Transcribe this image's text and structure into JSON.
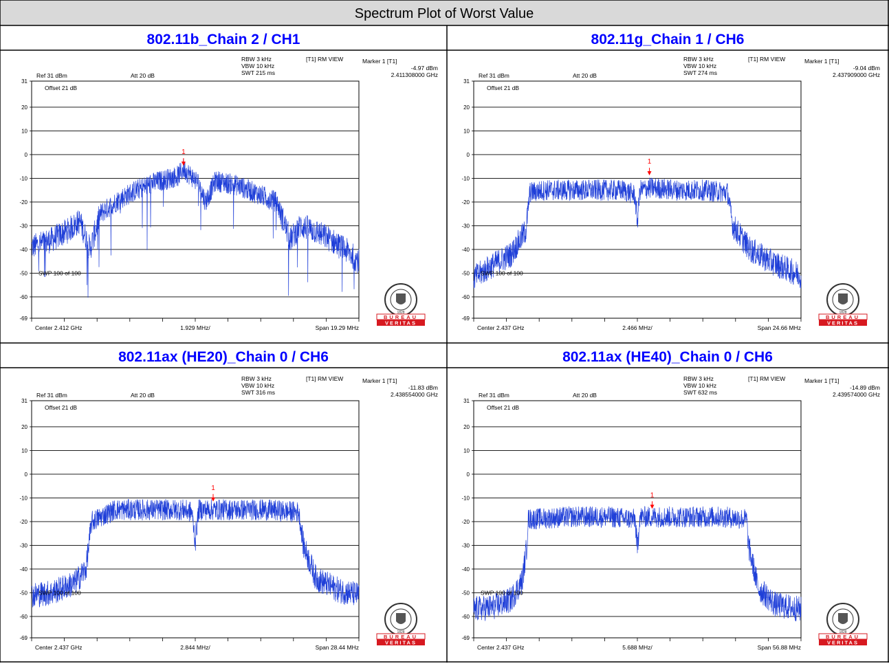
{
  "page": {
    "title": "Spectrum Plot of Worst Value"
  },
  "colors": {
    "trace": "#1f3fd8",
    "marker": "#ff0000",
    "heading": "#0000ff",
    "title_bg": "#d9d9d9",
    "bv_red": "#d71920",
    "grid": "#000000"
  },
  "logo": {
    "word1": "BUREAU",
    "word2": "VERITAS",
    "seal_year": "1828"
  },
  "panels": [
    {
      "heading": "802.11b_Chain 2 / CH1",
      "rbw": "RBW 3 kHz",
      "vbw": "VBW 10 kHz",
      "swt": "SWT 215 ms",
      "mode": "[T1] RM VIEW",
      "marker_label": "Marker 1 [T1]",
      "marker_level": "-4.97 dBm",
      "marker_freq": "2.411308000 GHz",
      "ref": "Ref 31 dBm",
      "att": "Att  20 dB",
      "offset": "Offset 21 dB",
      "swp": "SWP 100 of 100",
      "center": "Center 2.412 GHz",
      "perdiv": "1.929 MHz/",
      "span": "Span 19.29 MHz",
      "marker_num": "1"
    },
    {
      "heading": "802.11g_Chain 1 / CH6",
      "rbw": "RBW 3 kHz",
      "vbw": "VBW 10 kHz",
      "swt": "SWT 274 ms",
      "mode": "[T1] RM VIEW",
      "marker_label": "Marker 1 [T1]",
      "marker_level": "-9.04 dBm",
      "marker_freq": "2.437909000 GHz",
      "ref": "Ref 31 dBm",
      "att": "Att  20 dB",
      "offset": "Offset 21 dB",
      "swp": "SWP 100 of 100",
      "center": "Center 2.437 GHz",
      "perdiv": "2.466 MHz/",
      "span": "Span 24.66 MHz",
      "marker_num": "1"
    },
    {
      "heading": "802.11ax (HE20)_Chain 0 / CH6",
      "rbw": "RBW 3 kHz",
      "vbw": "VBW 10 kHz",
      "swt": "SWT 316 ms",
      "mode": "[T1] RM VIEW",
      "marker_label": "Marker 1 [T1]",
      "marker_level": "-11.83 dBm",
      "marker_freq": "2.438554000 GHz",
      "ref": "Ref 31 dBm",
      "att": "Att  20 dB",
      "offset": "Offset 21 dB",
      "swp": "SWP 100 of 100",
      "center": "Center 2.437 GHz",
      "perdiv": "2.844 MHz/",
      "span": "Span 28.44 MHz",
      "marker_num": "1"
    },
    {
      "heading": "802.11ax (HE40)_Chain 0 / CH6",
      "rbw": "RBW 3 kHz",
      "vbw": "VBW 10 kHz",
      "swt": "SWT 632 ms",
      "mode": "[T1] RM VIEW",
      "marker_label": "Marker 1 [T1]",
      "marker_level": "-14.89 dBm",
      "marker_freq": "2.439574000 GHz",
      "ref": "Ref 31 dBm",
      "att": "Att  20 dB",
      "offset": "Offset 21 dB",
      "swp": "SWP 100 of 100",
      "center": "Center 2.437 GHz",
      "perdiv": "5.688 MHz/",
      "span": "Span 56.88 MHz",
      "marker_num": "1"
    }
  ],
  "chart_data": [
    {
      "type": "line",
      "title": "802.11b_Chain 2 / CH1",
      "ylabel": "dBm",
      "ylim": [
        -69,
        31
      ],
      "yticks": [
        "31",
        "20",
        "10",
        "0",
        "-10",
        "-20",
        "-30",
        "-40",
        "-50",
        "-60",
        "-69"
      ],
      "xlim_mhz": [
        2402.355,
        2421.645
      ],
      "grid": true,
      "series": [
        {
          "x_mhz": [
            2402.355,
            2403.5,
            2404.5,
            2405.2,
            2405.8,
            2406.4,
            2407.5,
            2408.5,
            2409.5,
            2410.5,
            2411.0,
            2411.3,
            2411.6,
            2412.2,
            2412.6,
            2413.2,
            2414.5,
            2415.5,
            2416.8,
            2417.6,
            2418.2,
            2419.0,
            2420.0,
            2421.0,
            2421.645
          ],
          "y_dbm": [
            -39,
            -36,
            -32,
            -28,
            -40,
            -25,
            -19,
            -15,
            -12,
            -10,
            -9,
            -6,
            -8,
            -12,
            -20,
            -11,
            -13,
            -16,
            -20,
            -36,
            -30,
            -32,
            -36,
            -41,
            -45
          ]
        }
      ],
      "marker": {
        "x_mhz": 2411.308,
        "y_dbm": -4.97
      }
    },
    {
      "type": "line",
      "title": "802.11g_Chain 1 / CH6",
      "ylabel": "dBm",
      "ylim": [
        -69,
        31
      ],
      "yticks": [
        "31",
        "20",
        "10",
        "0",
        "-10",
        "-20",
        "-30",
        "-40",
        "-50",
        "-60",
        "-69"
      ],
      "xlim_mhz": [
        2424.67,
        2449.33
      ],
      "grid": true,
      "series": [
        {
          "x_mhz": [
            2424.67,
            2426.0,
            2427.5,
            2428.6,
            2428.9,
            2430.0,
            2432.0,
            2434.0,
            2436.0,
            2436.8,
            2437.0,
            2437.2,
            2438.0,
            2440.0,
            2442.0,
            2443.8,
            2444.2,
            2445.5,
            2447.0,
            2449.33
          ],
          "y_dbm": [
            -52,
            -47,
            -42,
            -32,
            -16,
            -15,
            -15,
            -15,
            -15,
            -17,
            -28,
            -15,
            -14,
            -15,
            -15,
            -16,
            -30,
            -40,
            -45,
            -51
          ]
        }
      ],
      "marker": {
        "x_mhz": 2437.909,
        "y_dbm": -9.04
      }
    },
    {
      "type": "line",
      "title": "802.11ax (HE20)_Chain 0 / CH6",
      "ylabel": "dBm",
      "ylim": [
        -69,
        31
      ],
      "yticks": [
        "31",
        "20",
        "10",
        "0",
        "-10",
        "-20",
        "-30",
        "-40",
        "-50",
        "-60",
        "-69"
      ],
      "xlim_mhz": [
        2422.78,
        2451.22
      ],
      "grid": true,
      "series": [
        {
          "x_mhz": [
            2422.78,
            2424.5,
            2426.5,
            2427.5,
            2428.0,
            2430.0,
            2433.0,
            2436.0,
            2436.7,
            2437.0,
            2437.3,
            2440.0,
            2443.0,
            2446.0,
            2446.4,
            2447.5,
            2449.5,
            2451.22
          ],
          "y_dbm": [
            -51,
            -50,
            -46,
            -40,
            -20,
            -15,
            -15,
            -15,
            -16,
            -28,
            -15,
            -15,
            -15,
            -16,
            -30,
            -44,
            -49,
            -51
          ]
        }
      ],
      "marker": {
        "x_mhz": 2438.554,
        "y_dbm": -11.83
      }
    },
    {
      "type": "line",
      "title": "802.11ax (HE40)_Chain 0 / CH6",
      "ylabel": "dBm",
      "ylim": [
        -69,
        31
      ],
      "yticks": [
        "31",
        "20",
        "10",
        "0",
        "-10",
        "-20",
        "-30",
        "-40",
        "-50",
        "-60",
        "-69"
      ],
      "xlim_mhz": [
        2408.56,
        2465.44
      ],
      "grid": true,
      "series": [
        {
          "x_mhz": [
            2408.56,
            2412.0,
            2415.0,
            2417.0,
            2417.8,
            2418.0,
            2425.0,
            2432.0,
            2436.6,
            2437.0,
            2437.4,
            2445.0,
            2452.0,
            2456.0,
            2456.3,
            2458.0,
            2461.0,
            2465.44
          ],
          "y_dbm": [
            -57,
            -56,
            -53,
            -45,
            -30,
            -19,
            -18,
            -18,
            -19,
            -32,
            -18,
            -18,
            -18,
            -19,
            -30,
            -48,
            -55,
            -57
          ]
        }
      ],
      "marker": {
        "x_mhz": 2439.574,
        "y_dbm": -14.89
      }
    }
  ]
}
